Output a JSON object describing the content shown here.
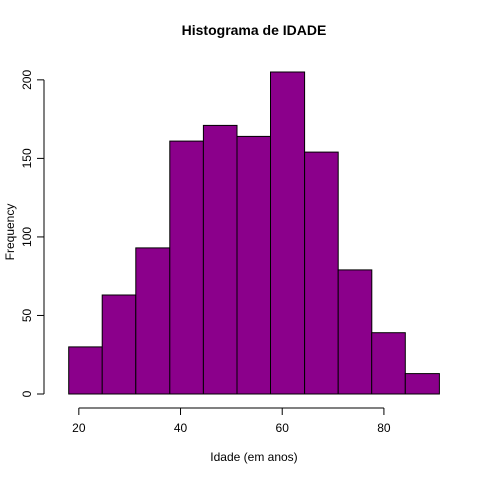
{
  "chart_data": {
    "type": "bar",
    "title": "Histograma de IDADE",
    "xlabel": "Idade (em anos)",
    "ylabel": "Frequency",
    "bins": [
      {
        "from": 18.0,
        "to": 24.6,
        "value": 30
      },
      {
        "from": 24.6,
        "to": 31.2,
        "value": 63
      },
      {
        "from": 31.2,
        "to": 37.9,
        "value": 93
      },
      {
        "from": 37.9,
        "to": 44.5,
        "value": 161
      },
      {
        "from": 44.5,
        "to": 51.1,
        "value": 171
      },
      {
        "from": 51.1,
        "to": 57.7,
        "value": 164
      },
      {
        "from": 57.7,
        "to": 64.4,
        "value": 205
      },
      {
        "from": 64.4,
        "to": 71.0,
        "value": 154
      },
      {
        "from": 71.0,
        "to": 77.6,
        "value": 79
      },
      {
        "from": 77.6,
        "to": 84.2,
        "value": 39
      },
      {
        "from": 84.2,
        "to": 90.9,
        "value": 13
      }
    ],
    "xlim": [
      16.1,
      92.8
    ],
    "ylim": [
      0,
      205
    ],
    "xticks": [
      20,
      40,
      60,
      80
    ],
    "yticks": [
      0,
      50,
      100,
      150,
      200
    ],
    "bar_color": "#8B008B",
    "grid": false,
    "legend": "none"
  }
}
